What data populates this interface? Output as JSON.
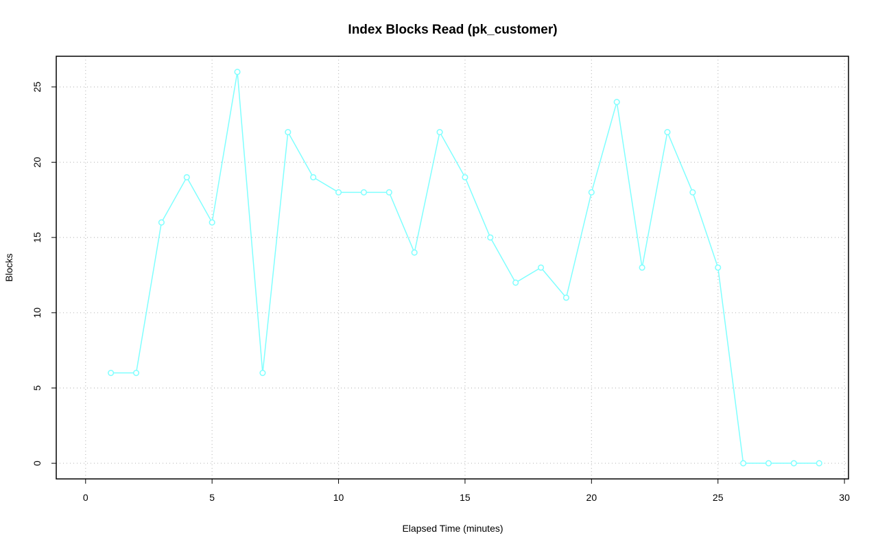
{
  "chart_data": {
    "type": "line",
    "title": "Index Blocks Read (pk_customer)",
    "x_label": "Elapsed Time (minutes)",
    "y_label": "Blocks",
    "x": [
      1,
      2,
      3,
      4,
      5,
      6,
      7,
      8,
      9,
      10,
      11,
      12,
      13,
      14,
      15,
      16,
      17,
      18,
      19,
      20,
      21,
      22,
      23,
      24,
      25,
      26,
      27,
      28,
      29
    ],
    "series": [
      {
        "name": "pk_customer",
        "color": "#7fffff",
        "values": [
          6,
          6,
          16,
          19,
          16,
          26,
          6,
          22,
          19,
          18,
          18,
          18,
          14,
          22,
          19,
          15,
          12,
          13,
          11,
          18,
          24,
          13,
          22,
          18,
          13,
          0,
          0,
          0,
          0
        ]
      }
    ],
    "xlim": [
      -1.16,
      30.16
    ],
    "ylim": [
      -1.04,
      27.04
    ],
    "xticks": [
      0,
      5,
      10,
      15,
      20,
      25,
      30
    ],
    "yticks": [
      0,
      5,
      10,
      15,
      20,
      25
    ],
    "grid": true
  }
}
